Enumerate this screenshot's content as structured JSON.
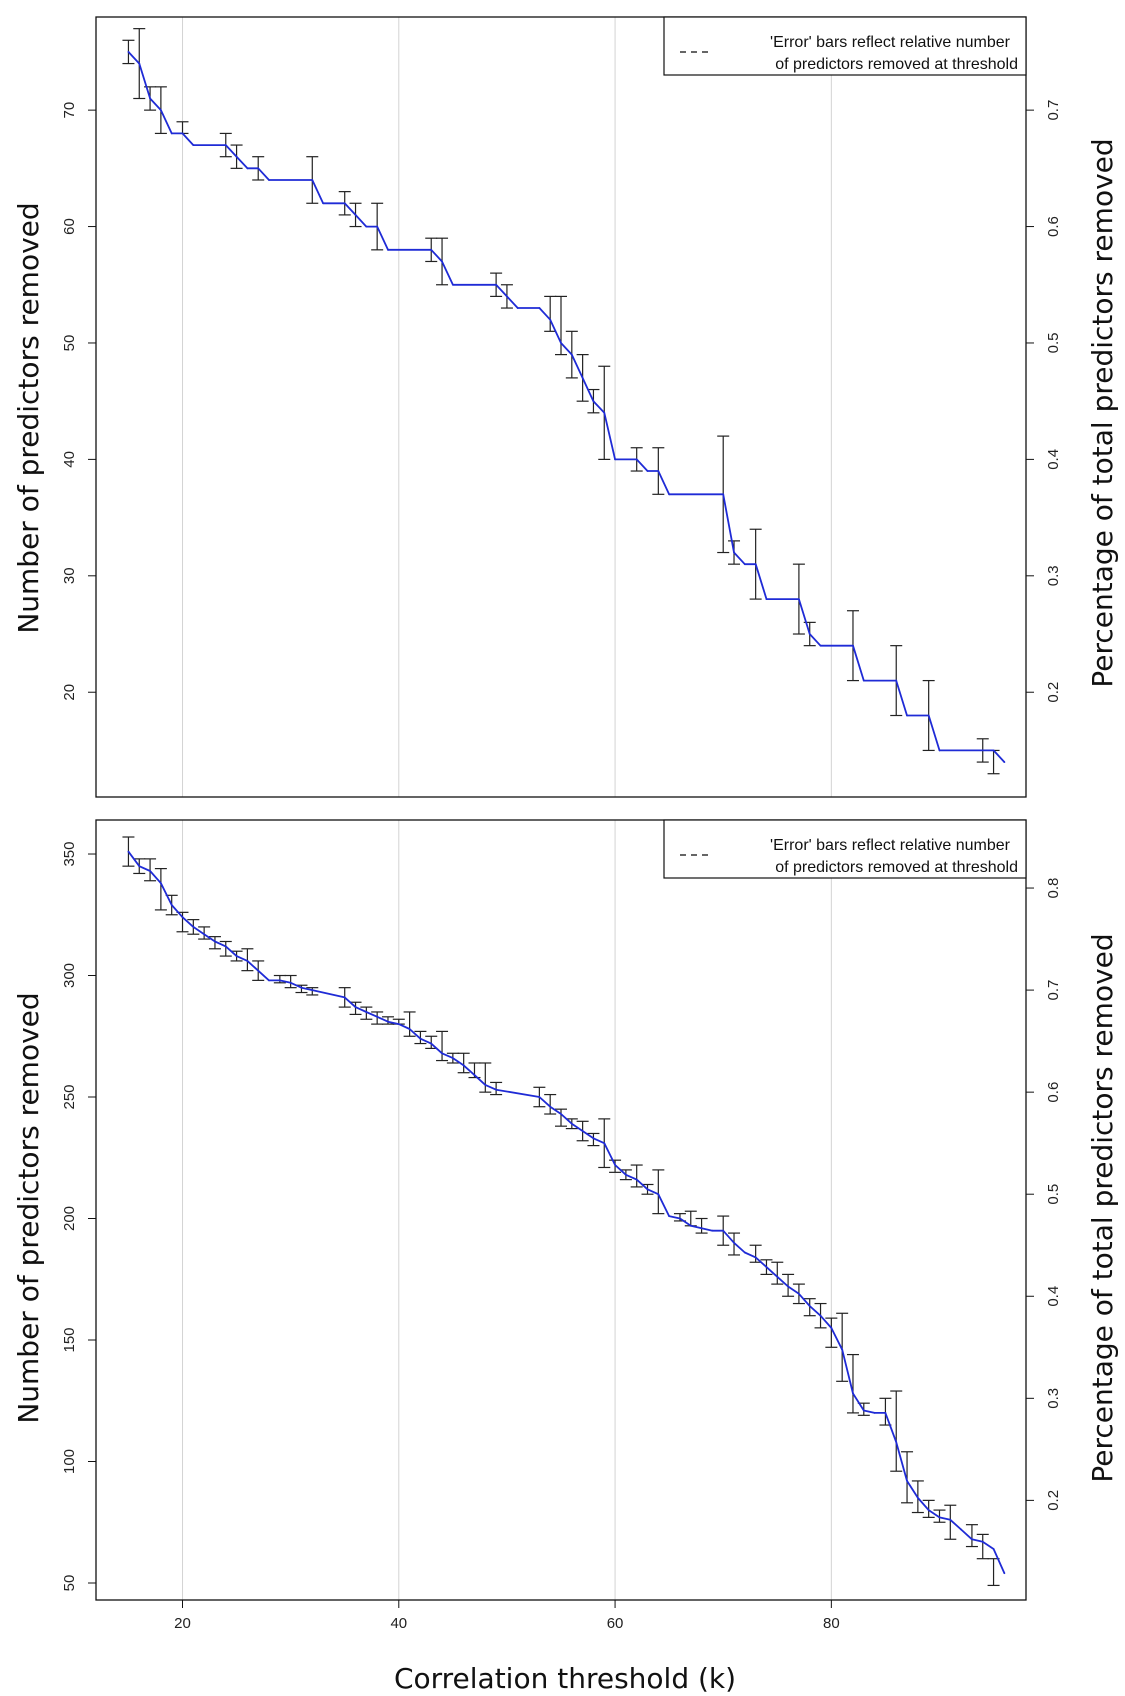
{
  "chart_data": [
    {
      "type": "line",
      "ylabel": "Number of predictors removed",
      "ylabel_right": "Percentage of total predictors removed",
      "xlabel": "",
      "xlim": [
        12,
        98
      ],
      "ylim": [
        11,
        78
      ],
      "yticks": [
        20,
        30,
        40,
        50,
        60,
        70
      ],
      "yticks_right": [
        0.2,
        0.3,
        0.4,
        0.5,
        0.6,
        0.7
      ],
      "right_scale_total": 100,
      "xgrid": [
        20,
        40,
        60,
        80
      ],
      "legend": {
        "position": "top-right",
        "lines": [
          "'Error' bars reflect relative number",
          "of predictors removed at threshold"
        ]
      },
      "series": [
        {
          "color": "#1f2bd6",
          "x": [
            15,
            16,
            17,
            18,
            19,
            20,
            21,
            24,
            25,
            26,
            27,
            28,
            32,
            33,
            35,
            36,
            37,
            38,
            39,
            43,
            44,
            45,
            49,
            50,
            51,
            53,
            54,
            55,
            56,
            57,
            58,
            59,
            60,
            62,
            63,
            64,
            65,
            70,
            71,
            72,
            73,
            74,
            77,
            78,
            79,
            82,
            83,
            86,
            87,
            89,
            90,
            95,
            96
          ],
          "y": [
            75,
            74,
            71,
            70,
            68,
            68,
            67,
            67,
            66,
            65,
            65,
            64,
            64,
            62,
            62,
            61,
            60,
            60,
            58,
            58,
            57,
            55,
            55,
            54,
            53,
            53,
            52,
            50,
            49,
            47,
            45,
            44,
            40,
            40,
            39,
            39,
            37,
            37,
            32,
            31,
            31,
            28,
            28,
            25,
            24,
            24,
            21,
            21,
            18,
            18,
            15,
            15,
            14
          ]
        }
      ],
      "error_bars": [
        {
          "x": 15,
          "low": 74,
          "high": 76
        },
        {
          "x": 16,
          "low": 71,
          "high": 77
        },
        {
          "x": 17,
          "low": 70,
          "high": 72
        },
        {
          "x": 18,
          "low": 68,
          "high": 72
        },
        {
          "x": 20,
          "low": 68,
          "high": 69
        },
        {
          "x": 24,
          "low": 66,
          "high": 68
        },
        {
          "x": 25,
          "low": 65,
          "high": 67
        },
        {
          "x": 27,
          "low": 64,
          "high": 66
        },
        {
          "x": 32,
          "low": 62,
          "high": 66
        },
        {
          "x": 35,
          "low": 61,
          "high": 63
        },
        {
          "x": 36,
          "low": 60,
          "high": 62
        },
        {
          "x": 38,
          "low": 58,
          "high": 62
        },
        {
          "x": 43,
          "low": 57,
          "high": 59
        },
        {
          "x": 44,
          "low": 55,
          "high": 59
        },
        {
          "x": 49,
          "low": 54,
          "high": 56
        },
        {
          "x": 50,
          "low": 53,
          "high": 55
        },
        {
          "x": 54,
          "low": 51,
          "high": 54
        },
        {
          "x": 55,
          "low": 49,
          "high": 54
        },
        {
          "x": 56,
          "low": 47,
          "high": 51
        },
        {
          "x": 57,
          "low": 45,
          "high": 49
        },
        {
          "x": 58,
          "low": 44,
          "high": 46
        },
        {
          "x": 59,
          "low": 40,
          "high": 48
        },
        {
          "x": 62,
          "low": 39,
          "high": 41
        },
        {
          "x": 64,
          "low": 37,
          "high": 41
        },
        {
          "x": 70,
          "low": 32,
          "high": 42
        },
        {
          "x": 71,
          "low": 31,
          "high": 33
        },
        {
          "x": 73,
          "low": 28,
          "high": 34
        },
        {
          "x": 77,
          "low": 25,
          "high": 31
        },
        {
          "x": 78,
          "low": 24,
          "high": 26
        },
        {
          "x": 82,
          "low": 21,
          "high": 27
        },
        {
          "x": 86,
          "low": 18,
          "high": 24
        },
        {
          "x": 89,
          "low": 15,
          "high": 21
        },
        {
          "x": 94,
          "low": 14,
          "high": 16
        },
        {
          "x": 95,
          "low": 13,
          "high": 15
        }
      ]
    },
    {
      "type": "line",
      "ylabel": "Number of predictors removed",
      "ylabel_right": "Percentage of total predictors removed",
      "xlabel": "Correlation threshold (k)",
      "xlim": [
        12,
        98
      ],
      "ylim": [
        43,
        364
      ],
      "yticks": [
        50,
        100,
        150,
        200,
        250,
        300,
        350
      ],
      "yticks_right": [
        0.2,
        0.3,
        0.4,
        0.5,
        0.6,
        0.7,
        0.8
      ],
      "right_scale_total": 420,
      "xticks": [
        20,
        40,
        60,
        80
      ],
      "xgrid": [
        20,
        40,
        60,
        80
      ],
      "legend": {
        "position": "top-right",
        "lines": [
          "'Error' bars reflect relative number",
          "of predictors removed at threshold"
        ]
      },
      "series": [
        {
          "color": "#1f2bd6",
          "x": [
            15,
            16,
            17,
            18,
            19,
            20,
            21,
            22,
            23,
            24,
            25,
            26,
            27,
            28,
            29,
            30,
            31,
            32,
            35,
            36,
            37,
            38,
            39,
            40,
            41,
            42,
            43,
            44,
            45,
            46,
            47,
            48,
            49,
            53,
            54,
            55,
            56,
            57,
            58,
            59,
            60,
            61,
            62,
            63,
            64,
            65,
            66,
            67,
            68,
            69,
            70,
            71,
            72,
            73,
            74,
            75,
            76,
            77,
            78,
            79,
            80,
            81,
            82,
            83,
            84,
            85,
            86,
            87,
            88,
            89,
            90,
            91,
            92,
            93,
            94,
            95,
            96
          ],
          "y": [
            351,
            345,
            343,
            338,
            329,
            324,
            320,
            317,
            314,
            312,
            308,
            306,
            302,
            298,
            298,
            297,
            295,
            294,
            291,
            287,
            285,
            283,
            281,
            280,
            278,
            274,
            272,
            268,
            266,
            263,
            259,
            255,
            253,
            250,
            246,
            243,
            239,
            236,
            233,
            231,
            222,
            218,
            216,
            212,
            210,
            201,
            200,
            197,
            196,
            195,
            195,
            190,
            186,
            184,
            180,
            176,
            172,
            169,
            164,
            160,
            155,
            146,
            128,
            121,
            120,
            120,
            108,
            92,
            85,
            80,
            77,
            76,
            72,
            68,
            67,
            64,
            54
          ]
        }
      ],
      "error_bars": [
        {
          "x": 15,
          "low": 345,
          "high": 357
        },
        {
          "x": 16,
          "low": 342,
          "high": 348
        },
        {
          "x": 17,
          "low": 339,
          "high": 348
        },
        {
          "x": 18,
          "low": 327,
          "high": 344
        },
        {
          "x": 19,
          "low": 325,
          "high": 333
        },
        {
          "x": 20,
          "low": 318,
          "high": 326
        },
        {
          "x": 21,
          "low": 317,
          "high": 323
        },
        {
          "x": 22,
          "low": 315,
          "high": 320
        },
        {
          "x": 23,
          "low": 311,
          "high": 316
        },
        {
          "x": 24,
          "low": 308,
          "high": 314
        },
        {
          "x": 25,
          "low": 306,
          "high": 310
        },
        {
          "x": 26,
          "low": 302,
          "high": 311
        },
        {
          "x": 27,
          "low": 298,
          "high": 306
        },
        {
          "x": 29,
          "low": 297,
          "high": 300
        },
        {
          "x": 30,
          "low": 295,
          "high": 300
        },
        {
          "x": 31,
          "low": 293,
          "high": 296
        },
        {
          "x": 32,
          "low": 292,
          "high": 295
        },
        {
          "x": 35,
          "low": 287,
          "high": 295
        },
        {
          "x": 36,
          "low": 284,
          "high": 289
        },
        {
          "x": 37,
          "low": 282,
          "high": 287
        },
        {
          "x": 38,
          "low": 280,
          "high": 285
        },
        {
          "x": 39,
          "low": 280,
          "high": 283
        },
        {
          "x": 40,
          "low": 280,
          "high": 282
        },
        {
          "x": 41,
          "low": 275,
          "high": 285
        },
        {
          "x": 42,
          "low": 272,
          "high": 277
        },
        {
          "x": 43,
          "low": 270,
          "high": 275
        },
        {
          "x": 44,
          "low": 265,
          "high": 277
        },
        {
          "x": 45,
          "low": 264,
          "high": 268
        },
        {
          "x": 46,
          "low": 260,
          "high": 268
        },
        {
          "x": 47,
          "low": 258,
          "high": 264
        },
        {
          "x": 48,
          "low": 252,
          "high": 264
        },
        {
          "x": 49,
          "low": 251,
          "high": 256
        },
        {
          "x": 53,
          "low": 246,
          "high": 254
        },
        {
          "x": 54,
          "low": 243,
          "high": 251
        },
        {
          "x": 55,
          "low": 238,
          "high": 245
        },
        {
          "x": 56,
          "low": 237,
          "high": 241
        },
        {
          "x": 57,
          "low": 232,
          "high": 240
        },
        {
          "x": 58,
          "low": 230,
          "high": 235
        },
        {
          "x": 59,
          "low": 221,
          "high": 241
        },
        {
          "x": 60,
          "low": 219,
          "high": 224
        },
        {
          "x": 61,
          "low": 216,
          "high": 220
        },
        {
          "x": 62,
          "low": 213,
          "high": 222
        },
        {
          "x": 63,
          "low": 210,
          "high": 214
        },
        {
          "x": 64,
          "low": 202,
          "high": 220
        },
        {
          "x": 66,
          "low": 199,
          "high": 202
        },
        {
          "x": 67,
          "low": 197,
          "high": 203
        },
        {
          "x": 68,
          "low": 194,
          "high": 200
        },
        {
          "x": 70,
          "low": 189,
          "high": 201
        },
        {
          "x": 71,
          "low": 185,
          "high": 194
        },
        {
          "x": 73,
          "low": 182,
          "high": 189
        },
        {
          "x": 74,
          "low": 177,
          "high": 183
        },
        {
          "x": 75,
          "low": 173,
          "high": 182
        },
        {
          "x": 76,
          "low": 168,
          "high": 177
        },
        {
          "x": 77,
          "low": 165,
          "high": 173
        },
        {
          "x": 78,
          "low": 160,
          "high": 167
        },
        {
          "x": 79,
          "low": 155,
          "high": 165
        },
        {
          "x": 80,
          "low": 147,
          "high": 159
        },
        {
          "x": 81,
          "low": 133,
          "high": 161
        },
        {
          "x": 82,
          "low": 120,
          "high": 144
        },
        {
          "x": 83,
          "low": 119,
          "high": 124
        },
        {
          "x": 85,
          "low": 115,
          "high": 126
        },
        {
          "x": 86,
          "low": 96,
          "high": 129
        },
        {
          "x": 87,
          "low": 83,
          "high": 104
        },
        {
          "x": 88,
          "low": 79,
          "high": 92
        },
        {
          "x": 89,
          "low": 77,
          "high": 84
        },
        {
          "x": 90,
          "low": 75,
          "high": 80
        },
        {
          "x": 91,
          "low": 68,
          "high": 82
        },
        {
          "x": 93,
          "low": 65,
          "high": 74
        },
        {
          "x": 94,
          "low": 60,
          "high": 70
        },
        {
          "x": 95,
          "low": 49,
          "high": 60
        }
      ]
    }
  ]
}
